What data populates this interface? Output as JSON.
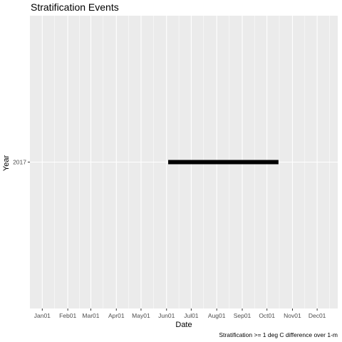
{
  "chart_data": {
    "type": "bar",
    "title": "Stratification Events",
    "xlabel": "Date",
    "ylabel": "Year",
    "caption": "Stratification >= 1 deg C difference over 1-m",
    "x_axis": {
      "range": [
        "2016-12-17",
        "2017-12-26"
      ],
      "ticks": [
        {
          "date": "2017-01-01",
          "label": "Jan01"
        },
        {
          "date": "2017-02-01",
          "label": "Feb01"
        },
        {
          "date": "2017-03-01",
          "label": "Mar01"
        },
        {
          "date": "2017-04-01",
          "label": "Apr01"
        },
        {
          "date": "2017-05-01",
          "label": "May01"
        },
        {
          "date": "2017-06-01",
          "label": "Jun01"
        },
        {
          "date": "2017-07-01",
          "label": "Jul01"
        },
        {
          "date": "2017-08-01",
          "label": "Aug01"
        },
        {
          "date": "2017-09-01",
          "label": "Sep01"
        },
        {
          "date": "2017-10-01",
          "label": "Oct01"
        },
        {
          "date": "2017-11-01",
          "label": "Nov01"
        },
        {
          "date": "2017-12-01",
          "label": "Dec01"
        }
      ]
    },
    "categories": [
      "2017"
    ],
    "series": [
      {
        "values": [
          {
            "category": "2017",
            "start": "2017-06-03",
            "end": "2017-10-15"
          }
        ]
      }
    ],
    "grid": true,
    "legend": "none",
    "colors": {
      "panel": "#ebebeb",
      "grid": "#ffffff",
      "bar": "#000000"
    }
  }
}
